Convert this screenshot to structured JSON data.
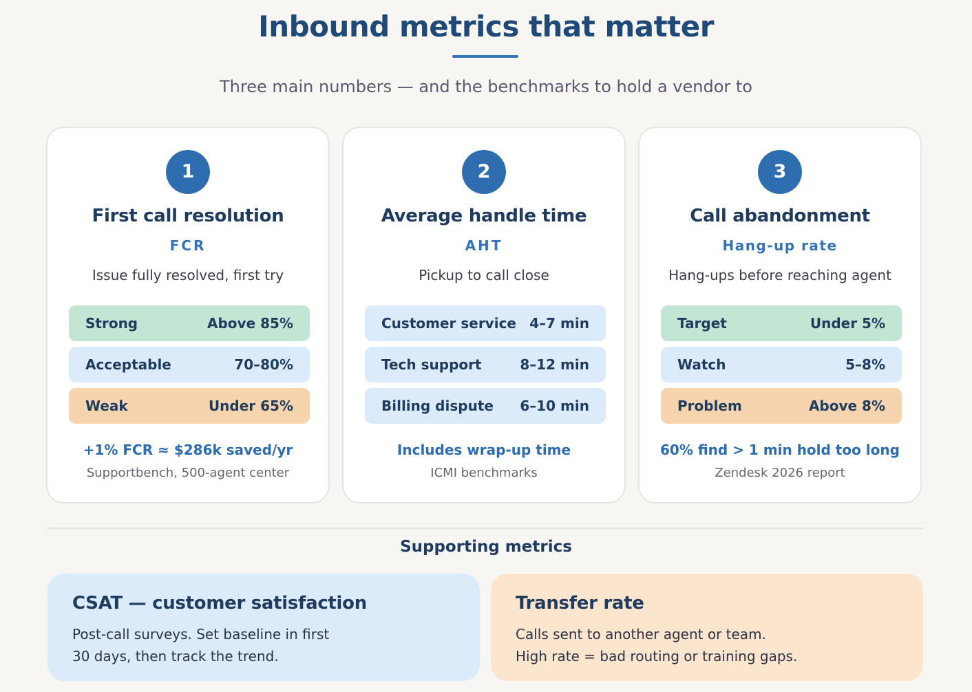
{
  "header": {
    "title": "Inbound metrics that matter",
    "subtitle": "Three main numbers — and the benchmarks to hold a vendor to"
  },
  "cards": [
    {
      "number": "1",
      "title": "First call resolution",
      "abbr": "FCR",
      "description": "Issue fully resolved, first try",
      "rows": [
        {
          "label": "Strong",
          "value": "Above 85%",
          "color": "#c3e5d3"
        },
        {
          "label": "Acceptable",
          "value": "70–80%",
          "color": "#dcebfa"
        },
        {
          "label": "Weak",
          "value": "Under 65%",
          "color": "#f6d4ad"
        }
      ],
      "note": "+1% FCR ≈ $286k saved/yr",
      "source": "Supportbench, 500-agent center"
    },
    {
      "number": "2",
      "title": "Average handle time",
      "abbr": "AHT",
      "description": "Pickup to call close",
      "rows": [
        {
          "label": "Customer service",
          "value": "4–7 min",
          "color": "#dcebfa"
        },
        {
          "label": "Tech support",
          "value": "8–12 min",
          "color": "#dcebfa"
        },
        {
          "label": "Billing dispute",
          "value": "6–10 min",
          "color": "#dcebfa"
        }
      ],
      "note": "Includes wrap-up time",
      "source": "ICMI benchmarks"
    },
    {
      "number": "3",
      "title": "Call abandonment",
      "abbr": "Hang-up rate",
      "description": "Hang-ups before reaching agent",
      "rows": [
        {
          "label": "Target",
          "value": "Under 5%",
          "color": "#c3e5d3"
        },
        {
          "label": "Watch",
          "value": "5–8%",
          "color": "#dcebfa"
        },
        {
          "label": "Problem",
          "value": "Above 8%",
          "color": "#f6d4ad"
        }
      ],
      "note": "60% find > 1 min hold too long",
      "source": "Zendesk 2026 report"
    }
  ],
  "supporting": {
    "title": "Supporting metrics",
    "panels": [
      {
        "title": "CSAT — customer satisfaction",
        "lines": [
          "Post-call surveys. Set baseline in first",
          "30 days, then track the trend."
        ]
      },
      {
        "title": "Transfer rate",
        "lines": [
          "Calls sent to another agent or team.",
          "High rate = bad routing or training gaps."
        ]
      }
    ]
  },
  "colors": {
    "accent": "#3573b8",
    "badge": "#2f6db1",
    "good": "#c3e5d3",
    "neutral": "#dcebfa",
    "bad": "#f6d4ad",
    "panel_warm": "#fbe5cd"
  }
}
